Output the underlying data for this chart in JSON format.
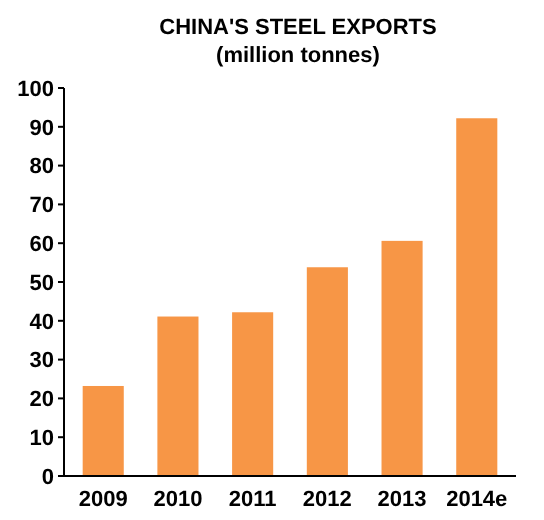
{
  "chart_data": {
    "type": "bar",
    "title": "CHINA'S STEEL EXPORTS",
    "subtitle": "(million tonnes)",
    "categories": [
      "2009",
      "2010",
      "2011",
      "2012",
      "2013",
      "2014e"
    ],
    "values": [
      23.2,
      41.1,
      42.2,
      53.8,
      60.6,
      92.2
    ],
    "color": "#f79646",
    "ylim": [
      0,
      100
    ],
    "yticks": [
      0,
      10,
      20,
      30,
      40,
      50,
      60,
      70,
      80,
      90,
      100
    ],
    "grid": false
  }
}
